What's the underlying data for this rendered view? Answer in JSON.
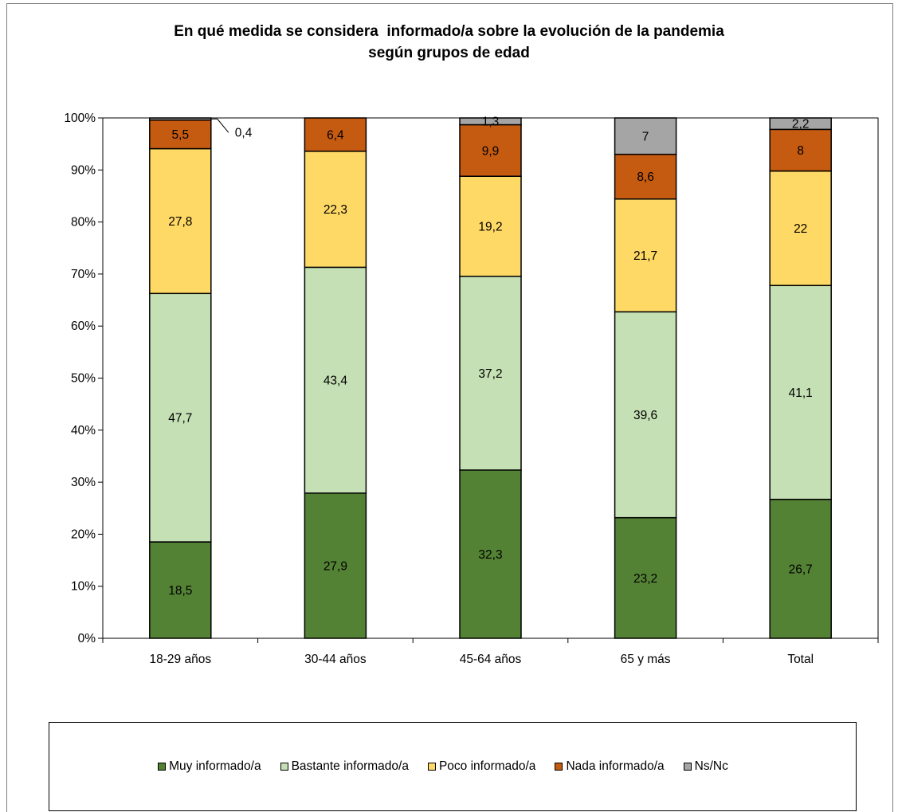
{
  "title_lines": [
    "En qué medida se considera  informado/a sobre la evolución de la pandemia",
    "según grupos de edad"
  ],
  "chart_data": {
    "type": "bar",
    "stacked": true,
    "percent": true,
    "categories": [
      "18-29 años",
      "30-44 años",
      "45-64 años",
      "65 y más",
      "Total"
    ],
    "series": [
      {
        "name": "Muy informado/a",
        "color": "#548235",
        "values": [
          18.5,
          27.9,
          32.3,
          23.2,
          26.7
        ],
        "labels": [
          "18,5",
          "27,9",
          "32,3",
          "23,2",
          "26,7"
        ]
      },
      {
        "name": "Bastante informado/a",
        "color": "#c5e0b4",
        "values": [
          47.7,
          43.4,
          37.2,
          39.6,
          41.1
        ],
        "labels": [
          "47,7",
          "43,4",
          "37,2",
          "39,6",
          "41,1"
        ]
      },
      {
        "name": "Poco informado/a",
        "color": "#ffd966",
        "values": [
          27.8,
          22.3,
          19.2,
          21.7,
          22.0
        ],
        "labels": [
          "27,8",
          "22,3",
          "19,2",
          "21,7",
          "22"
        ]
      },
      {
        "name": "Nada informado/a",
        "color": "#c55a11",
        "values": [
          5.5,
          6.4,
          9.9,
          8.6,
          8.0
        ],
        "labels": [
          "5,5",
          "6,4",
          "9,9",
          "8,6",
          "8"
        ]
      },
      {
        "name": "Ns/Nc",
        "color": "#a5a5a5",
        "values": [
          0.4,
          0.0,
          1.3,
          7.0,
          2.2
        ],
        "labels": [
          "0,4",
          "",
          "1,3",
          "7",
          "2,2"
        ]
      }
    ],
    "y_ticks": [
      "0%",
      "10%",
      "20%",
      "30%",
      "40%",
      "50%",
      "60%",
      "70%",
      "80%",
      "90%",
      "100%"
    ],
    "ylim": [
      0,
      100
    ],
    "legend_position": "bottom"
  }
}
